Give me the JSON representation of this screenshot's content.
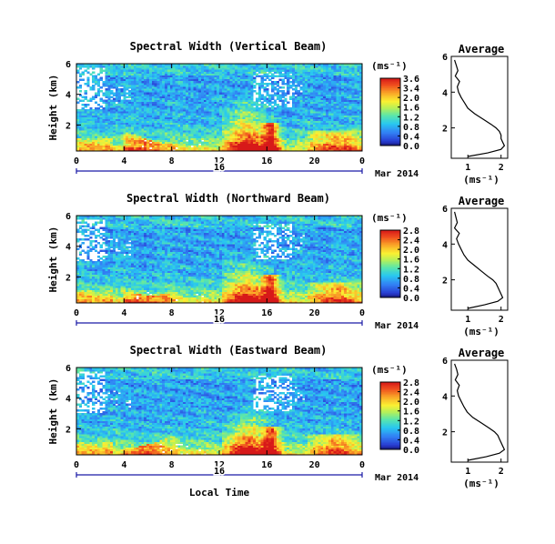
{
  "chart_data": [
    {
      "type": "heatmap",
      "title": "Spectral Width (Vertical Beam)",
      "ylabel": "Height (km)",
      "y_ticks": [
        "6",
        "4",
        "2"
      ],
      "ylim": [
        0.3,
        6
      ],
      "x_ticks": [
        "0",
        "4",
        "8",
        "12",
        "16",
        "20",
        "0"
      ],
      "xlim": [
        0,
        24
      ],
      "day_label": "16",
      "date_label": "Mar 2014",
      "colorbar": {
        "unit": "(ms⁻¹)",
        "ticks": [
          "3.6",
          "3.4",
          "2.0",
          "1.6",
          "1.2",
          "0.8",
          "0.4",
          "0.0"
        ],
        "range": [
          0,
          3.6
        ]
      },
      "profile": {
        "title": "Average",
        "xlabel": "(ms⁻¹)",
        "x_ticks": [
          "1",
          "2"
        ],
        "y_ticks": [
          "6",
          "4",
          "2"
        ],
        "xlim": [
          0.5,
          2.2
        ],
        "height_km": [
          0.4,
          0.6,
          0.8,
          1.0,
          1.2,
          1.4,
          1.6,
          1.8,
          2.0,
          2.2,
          2.5,
          2.8,
          3.1,
          3.4,
          3.7,
          4.0,
          4.3,
          4.6,
          4.9,
          5.2,
          5.5,
          5.8
        ],
        "width_ms": [
          1.0,
          1.6,
          2.0,
          2.1,
          2.05,
          2.0,
          2.0,
          1.95,
          1.85,
          1.7,
          1.45,
          1.2,
          1.0,
          0.9,
          0.8,
          0.72,
          0.68,
          0.75,
          0.62,
          0.7,
          0.65,
          0.6
        ]
      }
    },
    {
      "type": "heatmap",
      "title": "Spectral Width (Northward Beam)",
      "ylabel": "Height (km)",
      "y_ticks": [
        "6",
        "4",
        "2"
      ],
      "ylim": [
        0.3,
        6
      ],
      "x_ticks": [
        "0",
        "4",
        "8",
        "12",
        "16",
        "20",
        "0"
      ],
      "xlim": [
        0,
        24
      ],
      "day_label": "16",
      "date_label": "Mar 2014",
      "colorbar": {
        "unit": "(ms⁻¹)",
        "ticks": [
          "2.8",
          "2.4",
          "2.0",
          "1.6",
          "1.2",
          "0.8",
          "0.4",
          "0.0"
        ],
        "range": [
          0,
          2.8
        ]
      },
      "profile": {
        "title": "Average",
        "xlabel": "(ms⁻¹)",
        "x_ticks": [
          "1",
          "2"
        ],
        "y_ticks": [
          "6",
          "4",
          "2"
        ],
        "xlim": [
          0.5,
          2.2
        ],
        "height_km": [
          0.4,
          0.6,
          0.8,
          1.0,
          1.2,
          1.4,
          1.6,
          1.8,
          2.0,
          2.2,
          2.5,
          2.8,
          3.1,
          3.4,
          3.7,
          4.0,
          4.3,
          4.6,
          4.9,
          5.2,
          5.5,
          5.8
        ],
        "width_ms": [
          1.0,
          1.5,
          1.9,
          2.05,
          2.0,
          1.95,
          1.9,
          1.85,
          1.75,
          1.6,
          1.4,
          1.2,
          1.0,
          0.88,
          0.8,
          0.72,
          0.66,
          0.74,
          0.6,
          0.68,
          0.64,
          0.6
        ]
      }
    },
    {
      "type": "heatmap",
      "title": "Spectral Width (Eastward Beam)",
      "ylabel": "Height (km)",
      "y_ticks": [
        "6",
        "4",
        "2"
      ],
      "ylim": [
        0.3,
        6
      ],
      "x_ticks": [
        "0",
        "4",
        "8",
        "12",
        "16",
        "20",
        "0"
      ],
      "xlim": [
        0,
        24
      ],
      "day_label": "16",
      "date_label": "Mar 2014",
      "xlabel": "Local Time",
      "colorbar": {
        "unit": "(ms⁻¹)",
        "ticks": [
          "2.8",
          "2.4",
          "2.0",
          "1.6",
          "1.2",
          "0.8",
          "0.4",
          "0.0"
        ],
        "range": [
          0,
          2.8
        ]
      },
      "profile": {
        "title": "Average",
        "xlabel": "(ms⁻¹)",
        "x_ticks": [
          "1",
          "2"
        ],
        "y_ticks": [
          "6",
          "4",
          "2"
        ],
        "xlim": [
          0.5,
          2.2
        ],
        "height_km": [
          0.4,
          0.6,
          0.8,
          1.0,
          1.2,
          1.4,
          1.6,
          1.8,
          2.0,
          2.2,
          2.5,
          2.8,
          3.1,
          3.4,
          3.7,
          4.0,
          4.3,
          4.6,
          4.9,
          5.2,
          5.5,
          5.8
        ],
        "width_ms": [
          1.0,
          1.55,
          1.95,
          2.1,
          2.05,
          2.0,
          1.95,
          1.9,
          1.8,
          1.65,
          1.4,
          1.15,
          0.98,
          0.88,
          0.8,
          0.72,
          0.68,
          0.74,
          0.62,
          0.7,
          0.66,
          0.6
        ]
      }
    }
  ]
}
